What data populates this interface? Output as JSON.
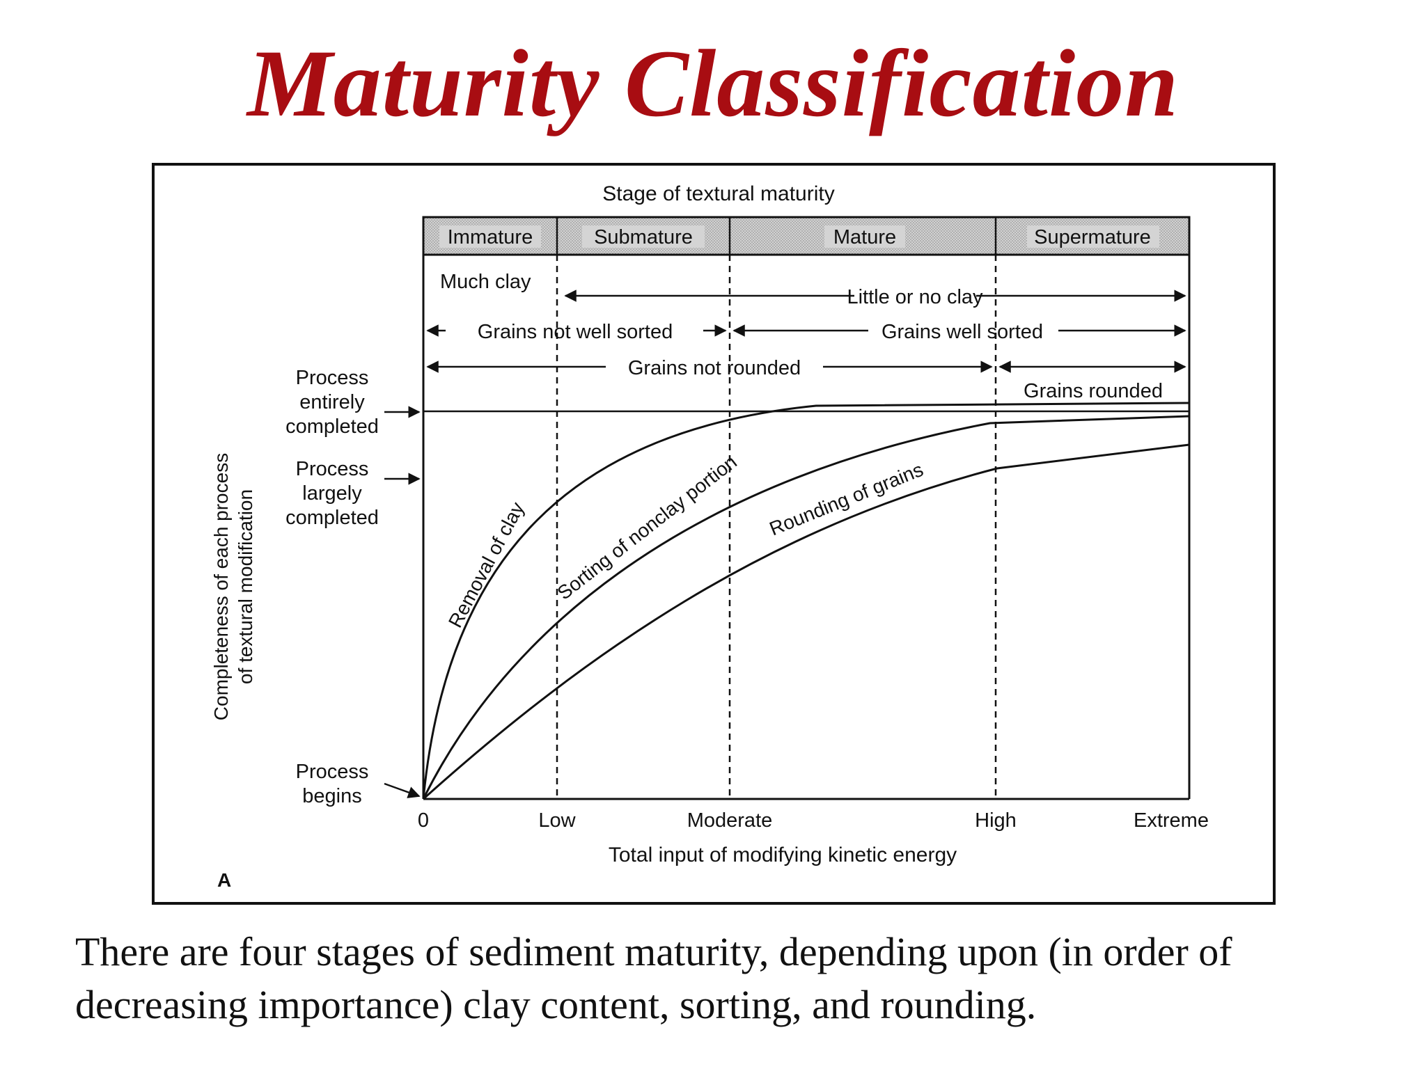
{
  "slide": {
    "title": "Maturity Classification",
    "caption": "There are four stages of sediment maturity, depending upon (in order of decreasing importance) clay content, sorting, and rounding."
  },
  "colors": {
    "title": "#a80d12",
    "ink": "#111111",
    "header_fill": "#d4d4d4"
  },
  "diagram": {
    "top_heading": "Stage of textural maturity",
    "stages": [
      "Immature",
      "Submature",
      "Mature",
      "Supermature"
    ],
    "bands": {
      "much_clay": "Much clay",
      "little_clay": "Little or no clay",
      "not_sorted": "Grains not well sorted",
      "well_sorted": "Grains well sorted",
      "not_rounded": "Grains not rounded",
      "rounded": "Grains rounded"
    },
    "y_axis_label_line1": "Completeness of each process",
    "y_axis_label_line2": "of textural modification",
    "y_levels": {
      "entirely_l1": "Process",
      "entirely_l2": "entirely",
      "entirely_l3": "completed",
      "largely_l1": "Process",
      "largely_l2": "largely",
      "largely_l3": "completed",
      "begins_l1": "Process",
      "begins_l2": "begins"
    },
    "x_ticks": [
      "0",
      "Low",
      "Moderate",
      "High",
      "Extreme"
    ],
    "x_axis_label": "Total input of modifying kinetic energy",
    "curves": {
      "clay": "Removal of clay",
      "sorting": "Sorting of nonclay portion",
      "rounding": "Rounding of grains"
    },
    "panel_letter": "A"
  }
}
